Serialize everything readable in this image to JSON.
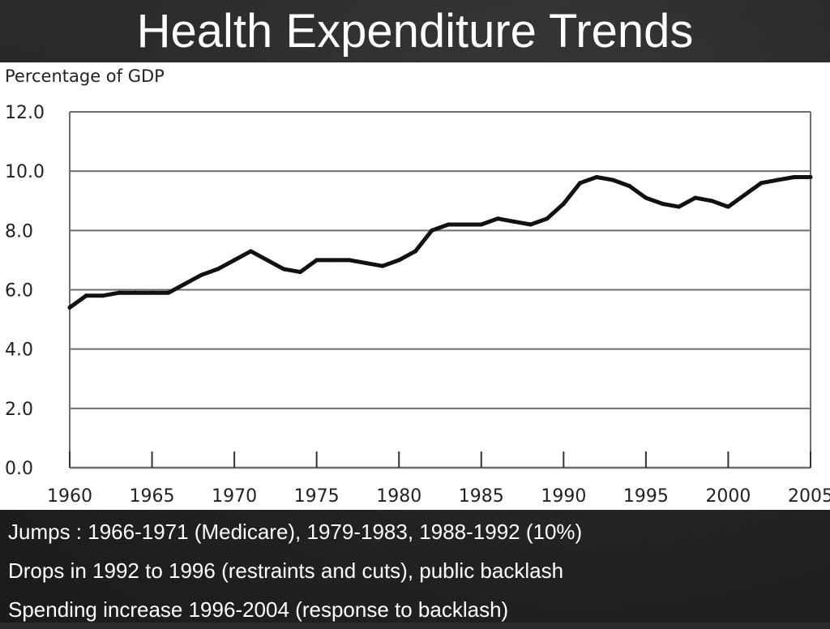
{
  "slide": {
    "title": "Health Expenditure Trends",
    "bullets": [
      "Jumps : 1966-1971 (Medicare), 1979-1983, 1988-1992 (10%)",
      "Drops in 1992 to 1996 (restraints and cuts), public backlash",
      "Spending increase 1996-2004 (response to backlash)"
    ]
  },
  "chart_data": {
    "type": "line",
    "title": "",
    "xlabel": "",
    "ylabel": "Percentage of GDP",
    "xlim": [
      1960,
      2005
    ],
    "ylim": [
      0,
      12
    ],
    "x_ticks": [
      "1960",
      "1965",
      "1970",
      "1975",
      "1980",
      "1985",
      "1990",
      "1995",
      "2000",
      "2005"
    ],
    "y_ticks": [
      "0.0",
      "2.0",
      "4.0",
      "6.0",
      "8.0",
      "10.0",
      "12.0"
    ],
    "grid": "horizontal",
    "legend": "none",
    "line_color": "#111111",
    "series": [
      {
        "x": [
          1960,
          1961,
          1962,
          1963,
          1964,
          1965,
          1966,
          1967,
          1968,
          1969,
          1970,
          1971,
          1972,
          1973,
          1974,
          1975,
          1976,
          1977,
          1978,
          1979,
          1980,
          1981,
          1982,
          1983,
          1984,
          1985,
          1986,
          1987,
          1988,
          1989,
          1990,
          1991,
          1992,
          1993,
          1994,
          1995,
          1996,
          1997,
          1998,
          1999,
          2000,
          2001,
          2002,
          2003,
          2004,
          2005
        ],
        "y": [
          5.4,
          5.8,
          5.8,
          5.9,
          5.9,
          5.9,
          5.9,
          6.2,
          6.5,
          6.7,
          7.0,
          7.3,
          7.0,
          6.7,
          6.6,
          7.0,
          7.0,
          7.0,
          6.9,
          6.8,
          7.0,
          7.3,
          8.0,
          8.2,
          8.2,
          8.2,
          8.4,
          8.3,
          8.2,
          8.4,
          8.9,
          9.6,
          9.8,
          9.7,
          9.5,
          9.1,
          8.9,
          8.8,
          9.1,
          9.0,
          8.8,
          9.2,
          9.6,
          9.7,
          9.8,
          9.8
        ]
      }
    ]
  }
}
